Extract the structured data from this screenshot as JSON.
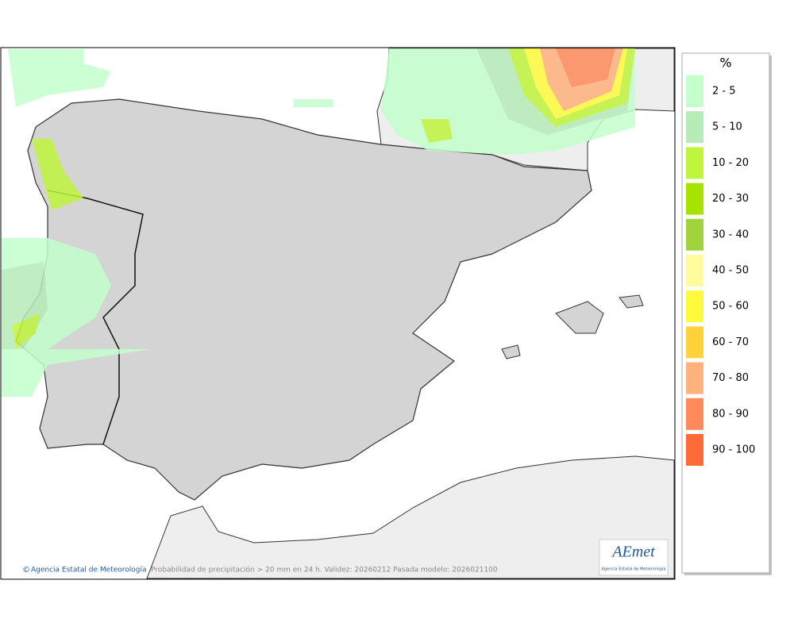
{
  "legend": {
    "title": "%",
    "classes": [
      {
        "label": "2 - 5",
        "color": "#c4ffcc"
      },
      {
        "label": "5 - 10",
        "color": "#b6ecb8"
      },
      {
        "label": "10 - 20",
        "color": "#bff53c"
      },
      {
        "label": "20 - 30",
        "color": "#a6e400"
      },
      {
        "label": "30 - 40",
        "color": "#9fd53a"
      },
      {
        "label": "40 - 50",
        "color": "#fffc9e"
      },
      {
        "label": "50 - 60",
        "color": "#fffa3c"
      },
      {
        "label": "60 - 70",
        "color": "#ffd23c"
      },
      {
        "label": "70 - 80",
        "color": "#ffb27c"
      },
      {
        "label": "80 - 90",
        "color": "#ff8a5a"
      },
      {
        "label": "90 - 100",
        "color": "#ff6a36"
      }
    ]
  },
  "footer": {
    "agency": "Agencia Estatal de Meteorología",
    "caption": "Probabilidad de precipitación > 20 mm en 24 h. Validez: 20260212 Pasada modelo: 2026021100"
  },
  "logo": {
    "name": "AEmet",
    "subtitle": "Agencia Estatal de Meteorología"
  }
}
